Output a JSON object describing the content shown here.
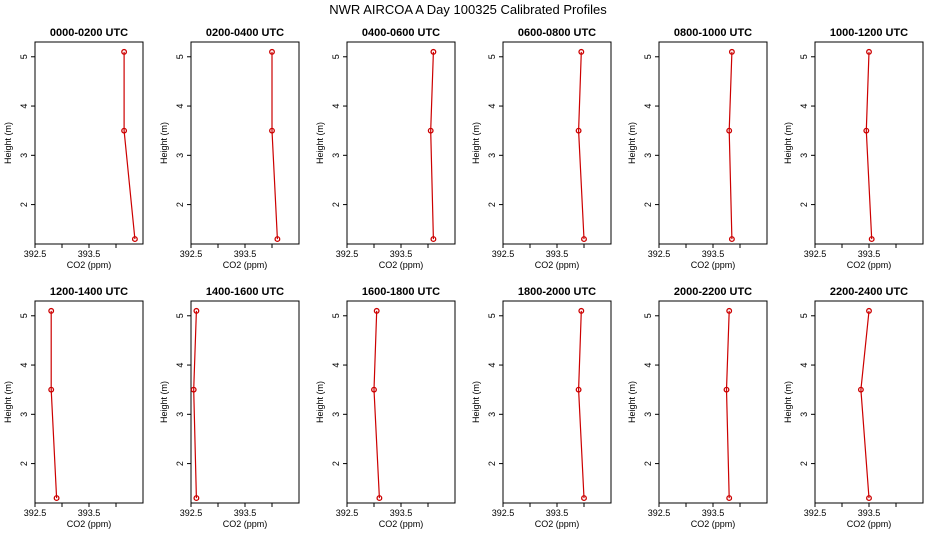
{
  "figure": {
    "title": "NWR AIRCOA A  Day 100325  Calibrated Profiles",
    "xlabel": "CO2 (ppm)",
    "ylabel": "Height (m)",
    "colors": {
      "line": "#cc0000",
      "marker": "#cc0000",
      "axis": "#000000",
      "background": "#ffffff"
    }
  },
  "chart_data": [
    {
      "type": "line",
      "title": "0000-0200 UTC",
      "xlabel": "CO2 (ppm)",
      "ylabel": "Height (m)",
      "xlim": [
        392.5,
        394.5
      ],
      "ylim": [
        1.2,
        5.3
      ],
      "xticks": [
        392.5,
        393.5
      ],
      "xtick_labels": [
        "392.5",
        "393.5"
      ],
      "yticks": [
        2,
        3,
        4,
        5
      ],
      "x": [
        394.15,
        394.15,
        394.35
      ],
      "y": [
        5.1,
        3.5,
        1.3
      ],
      "grid": false
    },
    {
      "type": "line",
      "title": "0200-0400 UTC",
      "xlabel": "CO2 (ppm)",
      "ylabel": "Height (m)",
      "xlim": [
        392.5,
        394.5
      ],
      "ylim": [
        1.2,
        5.3
      ],
      "xticks": [
        392.5,
        393.5
      ],
      "xtick_labels": [
        "392.5",
        "393.5"
      ],
      "yticks": [
        2,
        3,
        4,
        5
      ],
      "x": [
        394.0,
        394.0,
        394.1
      ],
      "y": [
        5.1,
        3.5,
        1.3
      ],
      "grid": false
    },
    {
      "type": "line",
      "title": "0400-0600 UTC",
      "xlabel": "CO2 (ppm)",
      "ylabel": "Height (m)",
      "xlim": [
        392.5,
        394.5
      ],
      "ylim": [
        1.2,
        5.3
      ],
      "xticks": [
        392.5,
        393.5
      ],
      "xtick_labels": [
        "392.5",
        "393.5"
      ],
      "yticks": [
        2,
        3,
        4,
        5
      ],
      "x": [
        394.1,
        394.05,
        394.1
      ],
      "y": [
        5.1,
        3.5,
        1.3
      ],
      "grid": false
    },
    {
      "type": "line",
      "title": "0600-0800 UTC",
      "xlabel": "CO2 (ppm)",
      "ylabel": "Height (m)",
      "xlim": [
        392.5,
        394.5
      ],
      "ylim": [
        1.2,
        5.3
      ],
      "xticks": [
        392.5,
        393.5
      ],
      "xtick_labels": [
        "392.5",
        "393.5"
      ],
      "yticks": [
        2,
        3,
        4,
        5
      ],
      "x": [
        393.95,
        393.9,
        394.0
      ],
      "y": [
        5.1,
        3.5,
        1.3
      ],
      "grid": false
    },
    {
      "type": "line",
      "title": "0800-1000 UTC",
      "xlabel": "CO2 (ppm)",
      "ylabel": "Height (m)",
      "xlim": [
        392.5,
        394.5
      ],
      "ylim": [
        1.2,
        5.3
      ],
      "xticks": [
        392.5,
        393.5
      ],
      "xtick_labels": [
        "392.5",
        "393.5"
      ],
      "yticks": [
        2,
        3,
        4,
        5
      ],
      "x": [
        393.85,
        393.8,
        393.85
      ],
      "y": [
        5.1,
        3.5,
        1.3
      ],
      "grid": false
    },
    {
      "type": "line",
      "title": "1000-1200 UTC",
      "xlabel": "CO2 (ppm)",
      "ylabel": "Height (m)",
      "xlim": [
        392.5,
        394.5
      ],
      "ylim": [
        1.2,
        5.3
      ],
      "xticks": [
        392.5,
        393.5
      ],
      "xtick_labels": [
        "392.5",
        "393.5"
      ],
      "yticks": [
        2,
        3,
        4,
        5
      ],
      "x": [
        393.5,
        393.45,
        393.55
      ],
      "y": [
        5.1,
        3.5,
        1.3
      ],
      "grid": false
    },
    {
      "type": "line",
      "title": "1200-1400 UTC",
      "xlabel": "CO2 (ppm)",
      "ylabel": "Height (m)",
      "xlim": [
        392.5,
        394.5
      ],
      "ylim": [
        1.2,
        5.3
      ],
      "xticks": [
        392.5,
        393.5
      ],
      "xtick_labels": [
        "392.5",
        "393.5"
      ],
      "yticks": [
        2,
        3,
        4,
        5
      ],
      "x": [
        392.8,
        392.8,
        392.9
      ],
      "y": [
        5.1,
        3.5,
        1.3
      ],
      "grid": false
    },
    {
      "type": "line",
      "title": "1400-1600 UTC",
      "xlabel": "CO2 (ppm)",
      "ylabel": "Height (m)",
      "xlim": [
        392.5,
        394.5
      ],
      "ylim": [
        1.2,
        5.3
      ],
      "xticks": [
        392.5,
        393.5
      ],
      "xtick_labels": [
        "392.5",
        "393.5"
      ],
      "yticks": [
        2,
        3,
        4,
        5
      ],
      "x": [
        392.6,
        392.55,
        392.6
      ],
      "y": [
        5.1,
        3.5,
        1.3
      ],
      "grid": false
    },
    {
      "type": "line",
      "title": "1600-1800 UTC",
      "xlabel": "CO2 (ppm)",
      "ylabel": "Height (m)",
      "xlim": [
        392.5,
        394.5
      ],
      "ylim": [
        1.2,
        5.3
      ],
      "xticks": [
        392.5,
        393.5
      ],
      "xtick_labels": [
        "392.5",
        "393.5"
      ],
      "yticks": [
        2,
        3,
        4,
        5
      ],
      "x": [
        393.05,
        393.0,
        393.1
      ],
      "y": [
        5.1,
        3.5,
        1.3
      ],
      "grid": false
    },
    {
      "type": "line",
      "title": "1800-2000 UTC",
      "xlabel": "CO2 (ppm)",
      "ylabel": "Height (m)",
      "xlim": [
        392.5,
        394.5
      ],
      "ylim": [
        1.2,
        5.3
      ],
      "xticks": [
        392.5,
        393.5
      ],
      "xtick_labels": [
        "392.5",
        "393.5"
      ],
      "yticks": [
        2,
        3,
        4,
        5
      ],
      "x": [
        393.95,
        393.9,
        394.0
      ],
      "y": [
        5.1,
        3.5,
        1.3
      ],
      "grid": false
    },
    {
      "type": "line",
      "title": "2000-2200 UTC",
      "xlabel": "CO2 (ppm)",
      "ylabel": "Height (m)",
      "xlim": [
        392.5,
        394.5
      ],
      "ylim": [
        1.2,
        5.3
      ],
      "xticks": [
        392.5,
        393.5
      ],
      "xtick_labels": [
        "392.5",
        "393.5"
      ],
      "yticks": [
        2,
        3,
        4,
        5
      ],
      "x": [
        393.8,
        393.75,
        393.8
      ],
      "y": [
        5.1,
        3.5,
        1.3
      ],
      "grid": false
    },
    {
      "type": "line",
      "title": "2200-2400 UTC",
      "xlabel": "CO2 (ppm)",
      "ylabel": "Height (m)",
      "xlim": [
        392.5,
        394.5
      ],
      "ylim": [
        1.2,
        5.3
      ],
      "xticks": [
        392.5,
        393.5
      ],
      "xtick_labels": [
        "392.5",
        "393.5"
      ],
      "yticks": [
        2,
        3,
        4,
        5
      ],
      "x": [
        393.5,
        393.35,
        393.5
      ],
      "y": [
        5.1,
        3.5,
        1.3
      ],
      "grid": false
    }
  ]
}
